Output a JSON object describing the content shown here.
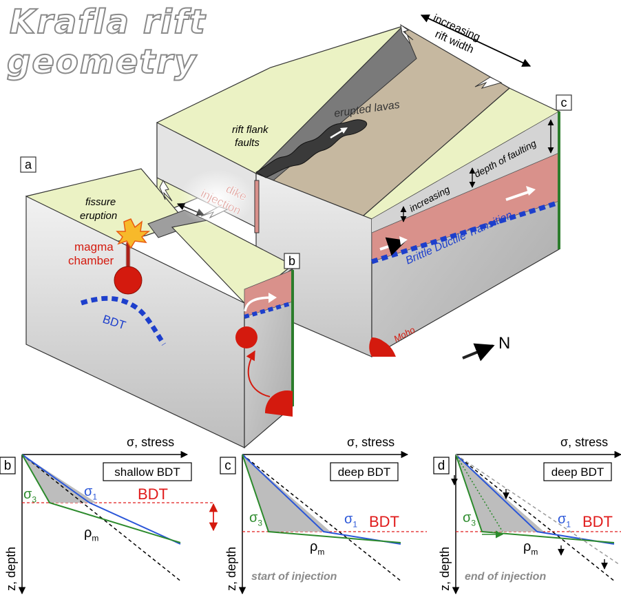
{
  "title": {
    "line1": "Krafla rift",
    "line2": "geometry"
  },
  "block_labels": {
    "a": "a",
    "b": "b",
    "c": "c"
  },
  "annotations": {
    "increasing_rift_width_1": "increasing",
    "increasing_rift_width_2": "rift width",
    "erupted_lavas": "erupted lavas",
    "rift_flank_faults_1": "rift flank",
    "rift_flank_faults_2": "faults",
    "dike_injection_1": "dike",
    "dike_injection_2": "injection",
    "fissure_eruption_1": "fissure",
    "fissure_eruption_2": "eruption",
    "magma_chamber_1": "magma",
    "magma_chamber_2": "chamber",
    "bdt": "BDT",
    "increasing": "increasing",
    "depth_of_faulting": "depth of faulting",
    "brittle_ductile_transition": "Brittle Ductile Transition",
    "moho": "Moho",
    "north": "N"
  },
  "colors": {
    "surface": "#ebf2c4",
    "block_gray": "#d2d2d2",
    "ductile_layer": "#d9918b",
    "bdt_line": "#1d3fcc",
    "magma": "#d41a0e",
    "rift_floor": "#c6b8a0",
    "sigma1_line": "#2a56d8",
    "sigma3_line": "#2c8a2c",
    "bdt_text": "#e01a1a"
  },
  "panels": [
    {
      "label": "b",
      "stress_axis_label": "σ, stress",
      "depth_axis_label": "z, depth",
      "box_label": "shallow BDT",
      "sigma1": "σ",
      "sigma1_sub": "1",
      "sigma3": "σ",
      "sigma3_sub": "3",
      "bdt_label": "BDT",
      "rho": "ρ",
      "rho_sub": "m",
      "caption": ""
    },
    {
      "label": "c",
      "stress_axis_label": "σ, stress",
      "depth_axis_label": "z, depth",
      "box_label": "deep BDT",
      "sigma1": "σ",
      "sigma1_sub": "1",
      "sigma3": "σ",
      "sigma3_sub": "3",
      "bdt_label": "BDT",
      "rho": "ρ",
      "rho_sub": "m",
      "caption": "start of injection"
    },
    {
      "label": "d",
      "stress_axis_label": "σ, stress",
      "depth_axis_label": "z, depth",
      "box_label": "deep BDT",
      "sigma1": "σ",
      "sigma1_sub": "1",
      "sigma3": "σ",
      "sigma3_sub": "3",
      "bdt_label": "BDT",
      "rho": "ρ",
      "rho_sub": "m",
      "caption": "end of injection"
    }
  ]
}
